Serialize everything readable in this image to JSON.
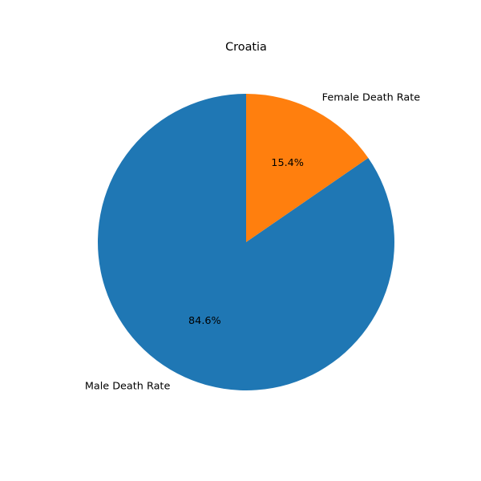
{
  "chart_data": {
    "type": "pie",
    "title": "Croatia",
    "labels": [
      "Male Death Rate",
      "Female Death Rate"
    ],
    "values": [
      84.6,
      15.4
    ],
    "value_labels": [
      "84.6%",
      "15.4%"
    ],
    "colors": [
      "#1f77b4",
      "#ff7f0e"
    ],
    "start_angle_deg": 90,
    "direction": "counterclockwise",
    "legend": "none"
  }
}
